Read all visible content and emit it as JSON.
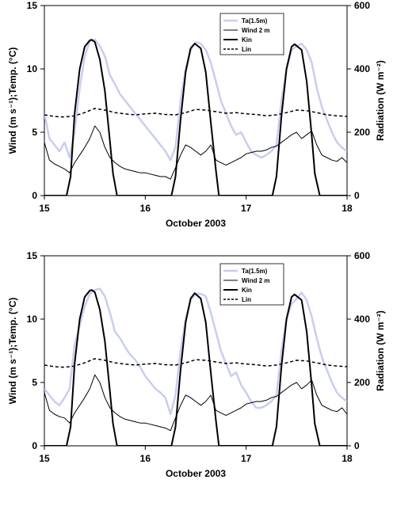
{
  "chart_data": [
    {
      "type": "line",
      "xlabel": "October 2003",
      "ylabel_left": "Wind (m s⁻¹);Temp. (°C)",
      "ylabel_right": "Radiation (W m⁻²)",
      "xlim": [
        15,
        18
      ],
      "ylim_left": [
        0,
        15
      ],
      "ylim_right": [
        0,
        600
      ],
      "x_ticks": [
        "15",
        "16",
        "17",
        "18"
      ],
      "y_ticks_left": [
        "0",
        "5",
        "10",
        "15"
      ],
      "y_ticks_right": [
        "0",
        "200",
        "400",
        "600"
      ],
      "legend_position": "top-right",
      "series": [
        {
          "name": "Ta(1.5m)",
          "axis": "left",
          "color": "#c9cdf0",
          "style": "solid",
          "x": [
            15.0,
            15.05,
            15.1,
            15.15,
            15.2,
            15.25,
            15.3,
            15.35,
            15.4,
            15.45,
            15.5,
            15.55,
            15.6,
            15.65,
            15.7,
            15.75,
            15.8,
            15.85,
            15.9,
            15.95,
            16.0,
            16.05,
            16.1,
            16.15,
            16.2,
            16.25,
            16.3,
            16.35,
            16.4,
            16.45,
            16.5,
            16.55,
            16.6,
            16.65,
            16.7,
            16.75,
            16.8,
            16.85,
            16.9,
            16.95,
            17.0,
            17.05,
            17.1,
            17.15,
            17.2,
            17.25,
            17.3,
            17.35,
            17.4,
            17.45,
            17.5,
            17.55,
            17.6,
            17.65,
            17.7,
            17.75,
            17.8,
            17.85,
            17.9,
            17.95,
            18.0
          ],
          "y": [
            6.5,
            4.5,
            4.0,
            3.5,
            4.2,
            3.0,
            5.0,
            8.5,
            11.0,
            12.2,
            12.3,
            11.8,
            11.0,
            9.5,
            8.8,
            8.0,
            7.5,
            7.0,
            6.5,
            6.0,
            5.5,
            5.0,
            4.5,
            4.0,
            3.5,
            2.8,
            3.8,
            7.5,
            10.0,
            11.5,
            12.1,
            12.0,
            11.5,
            10.5,
            9.0,
            7.5,
            6.5,
            5.5,
            4.8,
            5.0,
            4.2,
            3.5,
            3.2,
            3.0,
            3.2,
            3.5,
            4.0,
            7.5,
            10.0,
            11.5,
            11.8,
            12.0,
            11.5,
            10.5,
            8.5,
            7.0,
            6.0,
            5.0,
            4.2,
            3.8,
            3.5
          ]
        },
        {
          "name": "Wind 2 m",
          "axis": "left",
          "color": "#000000",
          "style": "solid",
          "x": [
            15.0,
            15.05,
            15.1,
            15.15,
            15.2,
            15.25,
            15.3,
            15.35,
            15.4,
            15.45,
            15.5,
            15.55,
            15.6,
            15.65,
            15.7,
            15.75,
            15.8,
            15.85,
            15.9,
            15.95,
            16.0,
            16.05,
            16.1,
            16.15,
            16.2,
            16.25,
            16.3,
            16.35,
            16.4,
            16.45,
            16.5,
            16.55,
            16.6,
            16.65,
            16.7,
            16.75,
            16.8,
            16.85,
            16.9,
            16.95,
            17.0,
            17.05,
            17.1,
            17.15,
            17.2,
            17.25,
            17.3,
            17.35,
            17.4,
            17.45,
            17.5,
            17.55,
            17.6,
            17.65,
            17.7,
            17.75,
            17.8,
            17.85,
            17.9,
            17.95,
            18.0
          ],
          "y": [
            4.2,
            2.8,
            2.5,
            2.3,
            2.1,
            1.8,
            2.6,
            3.2,
            3.8,
            4.5,
            5.5,
            5.0,
            3.8,
            3.0,
            2.6,
            2.3,
            2.1,
            2.0,
            1.9,
            1.8,
            1.8,
            1.7,
            1.6,
            1.5,
            1.5,
            1.3,
            2.2,
            3.2,
            4.0,
            3.8,
            3.5,
            3.2,
            3.5,
            4.0,
            2.8,
            2.6,
            2.4,
            2.6,
            2.8,
            3.0,
            3.3,
            3.4,
            3.5,
            3.5,
            3.6,
            3.8,
            3.9,
            4.2,
            4.5,
            4.8,
            5.0,
            4.5,
            4.8,
            5.1,
            4.0,
            3.2,
            3.0,
            2.8,
            2.7,
            3.0,
            2.6
          ]
        },
        {
          "name": "Kin",
          "axis": "right",
          "color": "#000000",
          "style": "solid-bold",
          "x": [
            15.0,
            15.22,
            15.26,
            15.3,
            15.35,
            15.4,
            15.45,
            15.47,
            15.5,
            15.55,
            15.6,
            15.65,
            15.68,
            15.72,
            16.0,
            16.26,
            16.3,
            16.35,
            16.4,
            16.45,
            16.49,
            16.55,
            16.6,
            16.65,
            16.7,
            16.73,
            17.0,
            17.26,
            17.3,
            17.35,
            17.4,
            17.45,
            17.48,
            17.55,
            17.6,
            17.65,
            17.68,
            17.73,
            18.0
          ],
          "y": [
            0,
            0,
            60,
            260,
            400,
            470,
            490,
            492,
            485,
            430,
            330,
            170,
            70,
            0,
            0,
            0,
            60,
            240,
            390,
            465,
            480,
            465,
            390,
            230,
            80,
            0,
            0,
            0,
            60,
            250,
            400,
            470,
            478,
            460,
            360,
            190,
            70,
            0,
            0
          ]
        },
        {
          "name": "Lin",
          "axis": "right",
          "color": "#000000",
          "style": "dashed",
          "x": [
            15.0,
            15.1,
            15.2,
            15.3,
            15.4,
            15.5,
            15.6,
            15.7,
            15.8,
            15.9,
            16.0,
            16.1,
            16.2,
            16.3,
            16.4,
            16.5,
            16.6,
            16.7,
            16.8,
            16.9,
            17.0,
            17.1,
            17.2,
            17.3,
            17.4,
            17.5,
            17.6,
            17.7,
            17.8,
            17.9,
            18.0
          ],
          "y": [
            255,
            250,
            248,
            252,
            262,
            275,
            270,
            262,
            258,
            255,
            258,
            260,
            256,
            255,
            262,
            272,
            270,
            265,
            260,
            262,
            258,
            256,
            252,
            255,
            262,
            270,
            268,
            262,
            255,
            252,
            250
          ]
        }
      ]
    },
    {
      "type": "line",
      "xlabel": "October 2003",
      "ylabel_left": "Wind (m s⁻¹);Temp. (°C)",
      "ylabel_right": "Radiation (W m⁻²)",
      "xlim": [
        15,
        18
      ],
      "ylim_left": [
        0,
        15
      ],
      "ylim_right": [
        0,
        600
      ],
      "x_ticks": [
        "15",
        "16",
        "17",
        "18"
      ],
      "y_ticks_left": [
        "0",
        "5",
        "10",
        "15"
      ],
      "y_ticks_right": [
        "0",
        "200",
        "400",
        "600"
      ],
      "legend_position": "top-right",
      "series": [
        {
          "name": "Ta(1.5m)",
          "axis": "left",
          "color": "#c9cdf0",
          "style": "solid",
          "x": [
            15.0,
            15.05,
            15.1,
            15.15,
            15.2,
            15.25,
            15.3,
            15.35,
            15.4,
            15.45,
            15.5,
            15.55,
            15.6,
            15.65,
            15.7,
            15.75,
            15.8,
            15.85,
            15.9,
            15.95,
            16.0,
            16.05,
            16.1,
            16.15,
            16.2,
            16.25,
            16.3,
            16.35,
            16.4,
            16.45,
            16.5,
            16.55,
            16.6,
            16.65,
            16.7,
            16.75,
            16.8,
            16.85,
            16.9,
            16.95,
            17.0,
            17.05,
            17.1,
            17.15,
            17.2,
            17.25,
            17.3,
            17.35,
            17.4,
            17.45,
            17.5,
            17.55,
            17.6,
            17.65,
            17.7,
            17.75,
            17.8,
            17.85,
            17.9,
            17.95,
            18.0
          ],
          "y": [
            4.5,
            4.0,
            3.5,
            3.2,
            3.8,
            4.5,
            8.0,
            9.5,
            11.0,
            12.0,
            12.3,
            12.4,
            11.8,
            10.5,
            9.0,
            8.5,
            7.8,
            7.2,
            6.8,
            6.2,
            5.5,
            5.0,
            4.5,
            4.2,
            3.8,
            2.5,
            4.0,
            7.5,
            10.0,
            11.5,
            12.0,
            12.0,
            11.8,
            10.5,
            9.0,
            7.5,
            6.5,
            5.5,
            5.8,
            4.8,
            4.2,
            3.5,
            3.0,
            3.0,
            3.2,
            3.5,
            4.0,
            7.5,
            10.0,
            11.2,
            11.6,
            12.1,
            11.5,
            10.2,
            8.5,
            7.0,
            6.0,
            5.0,
            4.2,
            3.8,
            3.5
          ]
        },
        {
          "name": "Wind 2 m",
          "axis": "left",
          "color": "#000000",
          "style": "solid",
          "x": [
            15.0,
            15.05,
            15.1,
            15.15,
            15.2,
            15.25,
            15.3,
            15.35,
            15.4,
            15.45,
            15.5,
            15.55,
            15.6,
            15.65,
            15.7,
            15.75,
            15.8,
            15.85,
            15.9,
            15.95,
            16.0,
            16.05,
            16.1,
            16.15,
            16.2,
            16.25,
            16.3,
            16.35,
            16.4,
            16.45,
            16.5,
            16.55,
            16.6,
            16.65,
            16.7,
            16.75,
            16.8,
            16.85,
            16.9,
            16.95,
            17.0,
            17.05,
            17.1,
            17.15,
            17.2,
            17.25,
            17.3,
            17.35,
            17.4,
            17.45,
            17.5,
            17.55,
            17.6,
            17.65,
            17.7,
            17.75,
            17.8,
            17.85,
            17.9,
            17.95,
            18.0
          ],
          "y": [
            4.2,
            2.8,
            2.5,
            2.3,
            2.2,
            1.8,
            2.6,
            3.2,
            3.8,
            4.5,
            5.6,
            5.0,
            3.8,
            3.0,
            2.6,
            2.3,
            2.1,
            2.0,
            1.9,
            1.8,
            1.8,
            1.7,
            1.6,
            1.5,
            1.4,
            1.2,
            2.2,
            3.2,
            4.0,
            3.8,
            3.5,
            3.2,
            3.5,
            4.0,
            2.8,
            2.6,
            2.4,
            2.6,
            2.8,
            3.0,
            3.3,
            3.4,
            3.5,
            3.5,
            3.6,
            3.8,
            3.9,
            4.2,
            4.5,
            4.8,
            5.0,
            4.5,
            4.8,
            5.2,
            4.0,
            3.2,
            3.0,
            2.8,
            2.7,
            3.0,
            2.5
          ]
        },
        {
          "name": "Kin",
          "axis": "right",
          "color": "#000000",
          "style": "solid-bold",
          "x": [
            15.0,
            15.22,
            15.26,
            15.3,
            15.35,
            15.4,
            15.45,
            15.47,
            15.5,
            15.55,
            15.6,
            15.65,
            15.68,
            15.72,
            16.0,
            16.26,
            16.3,
            16.35,
            16.4,
            16.45,
            16.49,
            16.55,
            16.6,
            16.65,
            16.7,
            16.73,
            17.0,
            17.26,
            17.3,
            17.35,
            17.4,
            17.45,
            17.48,
            17.55,
            17.6,
            17.65,
            17.68,
            17.73,
            18.0
          ],
          "y": [
            0,
            0,
            60,
            260,
            400,
            470,
            490,
            492,
            485,
            430,
            330,
            170,
            70,
            0,
            0,
            0,
            60,
            240,
            390,
            465,
            482,
            465,
            390,
            230,
            80,
            0,
            0,
            0,
            60,
            250,
            400,
            470,
            478,
            460,
            360,
            190,
            70,
            0,
            0
          ]
        },
        {
          "name": "Lin",
          "axis": "right",
          "color": "#000000",
          "style": "dashed",
          "x": [
            15.0,
            15.1,
            15.2,
            15.3,
            15.4,
            15.5,
            15.6,
            15.7,
            15.8,
            15.9,
            16.0,
            16.1,
            16.2,
            16.3,
            16.4,
            16.5,
            16.6,
            16.7,
            16.8,
            16.9,
            17.0,
            17.1,
            17.2,
            17.3,
            17.4,
            17.5,
            17.6,
            17.7,
            17.8,
            17.9,
            18.0
          ],
          "y": [
            255,
            250,
            248,
            252,
            262,
            275,
            270,
            262,
            258,
            255,
            258,
            260,
            256,
            255,
            262,
            272,
            270,
            265,
            260,
            262,
            258,
            256,
            252,
            255,
            262,
            270,
            268,
            262,
            255,
            252,
            250
          ]
        }
      ]
    }
  ]
}
